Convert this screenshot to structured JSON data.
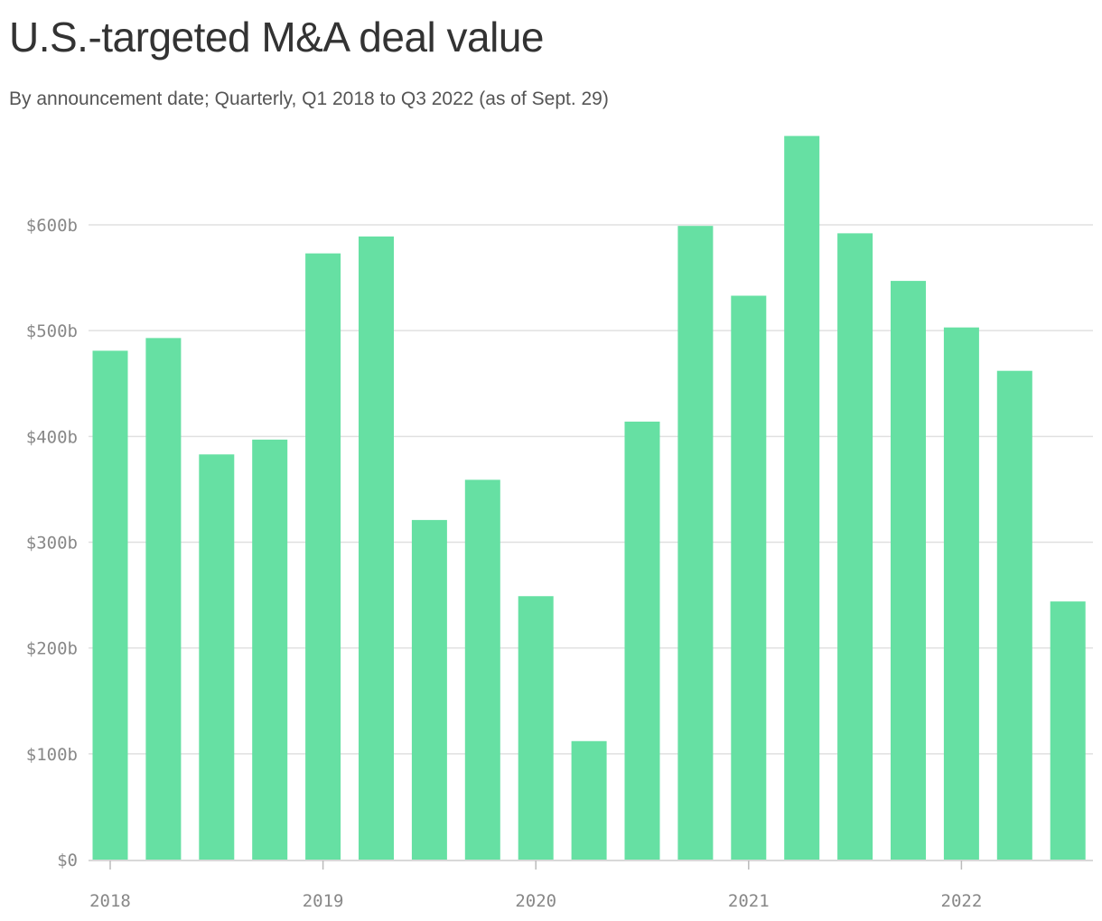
{
  "chart_data": {
    "type": "bar",
    "title": "U.S.-targeted M&A deal value",
    "subtitle": "By announcement date; Quarterly, Q1 2018 to Q3 2022 (as of Sept. 29)",
    "categories": [
      "Q1 2018",
      "Q2 2018",
      "Q3 2018",
      "Q4 2018",
      "Q1 2019",
      "Q2 2019",
      "Q3 2019",
      "Q4 2019",
      "Q1 2020",
      "Q2 2020",
      "Q3 2020",
      "Q4 2020",
      "Q1 2021",
      "Q2 2021",
      "Q3 2021",
      "Q4 2021",
      "Q1 2022",
      "Q2 2022",
      "Q3 2022"
    ],
    "values": [
      481,
      493,
      383,
      397,
      573,
      589,
      321,
      359,
      249,
      112,
      414,
      599,
      533,
      684,
      592,
      547,
      503,
      462,
      244
    ],
    "ylim": [
      0,
      700
    ],
    "y_ticks": [
      0,
      100,
      200,
      300,
      400,
      500,
      600
    ],
    "y_tick_labels": [
      "$0",
      "$100b",
      "$200b",
      "$300b",
      "$400b",
      "$500b",
      "$600b"
    ],
    "x_tick_labels": [
      "2018",
      "2019",
      "2020",
      "2021",
      "2022"
    ],
    "xlabel": "",
    "ylabel": "",
    "grid": true,
    "bar_color": "#66e0a3"
  }
}
